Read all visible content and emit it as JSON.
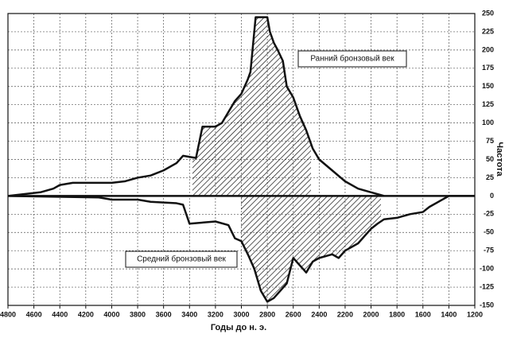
{
  "chart_data": {
    "type": "line",
    "xlabel": "Годы до н. э.",
    "ylabel": "Частота",
    "xlim": [
      4800,
      1200
    ],
    "xticks": [
      4800,
      4600,
      4400,
      4200,
      4000,
      3800,
      3600,
      3400,
      3200,
      3000,
      2800,
      2600,
      2400,
      2200,
      2000,
      1800,
      1600,
      1400,
      1200
    ],
    "ylim": [
      -150,
      250
    ],
    "yticks": [
      -150,
      -125,
      -100,
      -75,
      -50,
      -25,
      0,
      25,
      50,
      75,
      100,
      125,
      150,
      175,
      200,
      225,
      250
    ],
    "grid": true,
    "series": [
      {
        "name": "Ранний бронзовый век",
        "color": "#111111",
        "x": [
          4800,
          4550,
          4450,
          4400,
          4300,
          4000,
          3900,
          3800,
          3700,
          3600,
          3500,
          3450,
          3350,
          3300,
          3200,
          3150,
          3100,
          3050,
          3000,
          2950,
          2930,
          2890,
          2800,
          2780,
          2750,
          2720,
          2680,
          2650,
          2600,
          2550,
          2500,
          2450,
          2400,
          2300,
          2200,
          2100,
          2000,
          1900
        ],
        "values": [
          0,
          5,
          10,
          15,
          18,
          18,
          20,
          25,
          28,
          35,
          45,
          55,
          52,
          95,
          95,
          100,
          115,
          130,
          140,
          160,
          170,
          245,
          245,
          225,
          210,
          200,
          185,
          150,
          135,
          110,
          90,
          65,
          50,
          35,
          20,
          10,
          5,
          0
        ]
      },
      {
        "name": "Средний бронзовый век",
        "color": "#111111",
        "x": [
          4800,
          4100,
          4000,
          3800,
          3700,
          3500,
          3450,
          3400,
          3200,
          3100,
          3050,
          3000,
          2950,
          2900,
          2850,
          2800,
          2750,
          2700,
          2650,
          2600,
          2550,
          2500,
          2450,
          2400,
          2300,
          2250,
          2200,
          2100,
          2050,
          2000,
          1950,
          1900,
          1800,
          1700,
          1600,
          1550,
          1450,
          1400,
          1200
        ],
        "values": [
          0,
          -2,
          -5,
          -5,
          -8,
          -10,
          -12,
          -38,
          -35,
          -40,
          -58,
          -62,
          -80,
          -100,
          -130,
          -145,
          -140,
          -130,
          -120,
          -85,
          -95,
          -105,
          -90,
          -85,
          -80,
          -85,
          -75,
          -65,
          -55,
          -45,
          -38,
          -32,
          -30,
          -25,
          -22,
          -15,
          -5,
          0,
          0
        ]
      }
    ]
  }
}
